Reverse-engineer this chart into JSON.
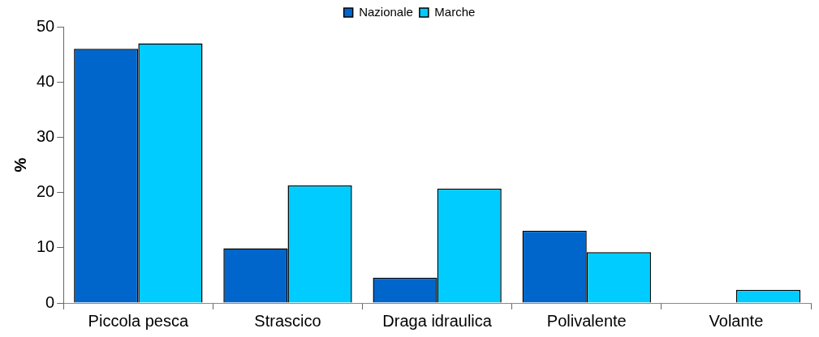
{
  "chart_data": {
    "type": "bar",
    "ylabel": "%",
    "categories": [
      "Piccola pesca",
      "Strascico",
      "Draga idraulica",
      "Polivalente",
      "Volante"
    ],
    "series": [
      {
        "name": "Nazionale",
        "color": "#0066cc",
        "values": [
          46.0,
          9.9,
          4.6,
          13.1,
          0
        ]
      },
      {
        "name": "Marche",
        "color": "#00ccff",
        "values": [
          47.0,
          21.3,
          20.7,
          9.2,
          2.4
        ]
      }
    ],
    "ylim": [
      0,
      50
    ],
    "yticks": [
      0,
      10,
      20,
      30,
      40,
      50
    ],
    "grid": false,
    "legend": "top"
  }
}
